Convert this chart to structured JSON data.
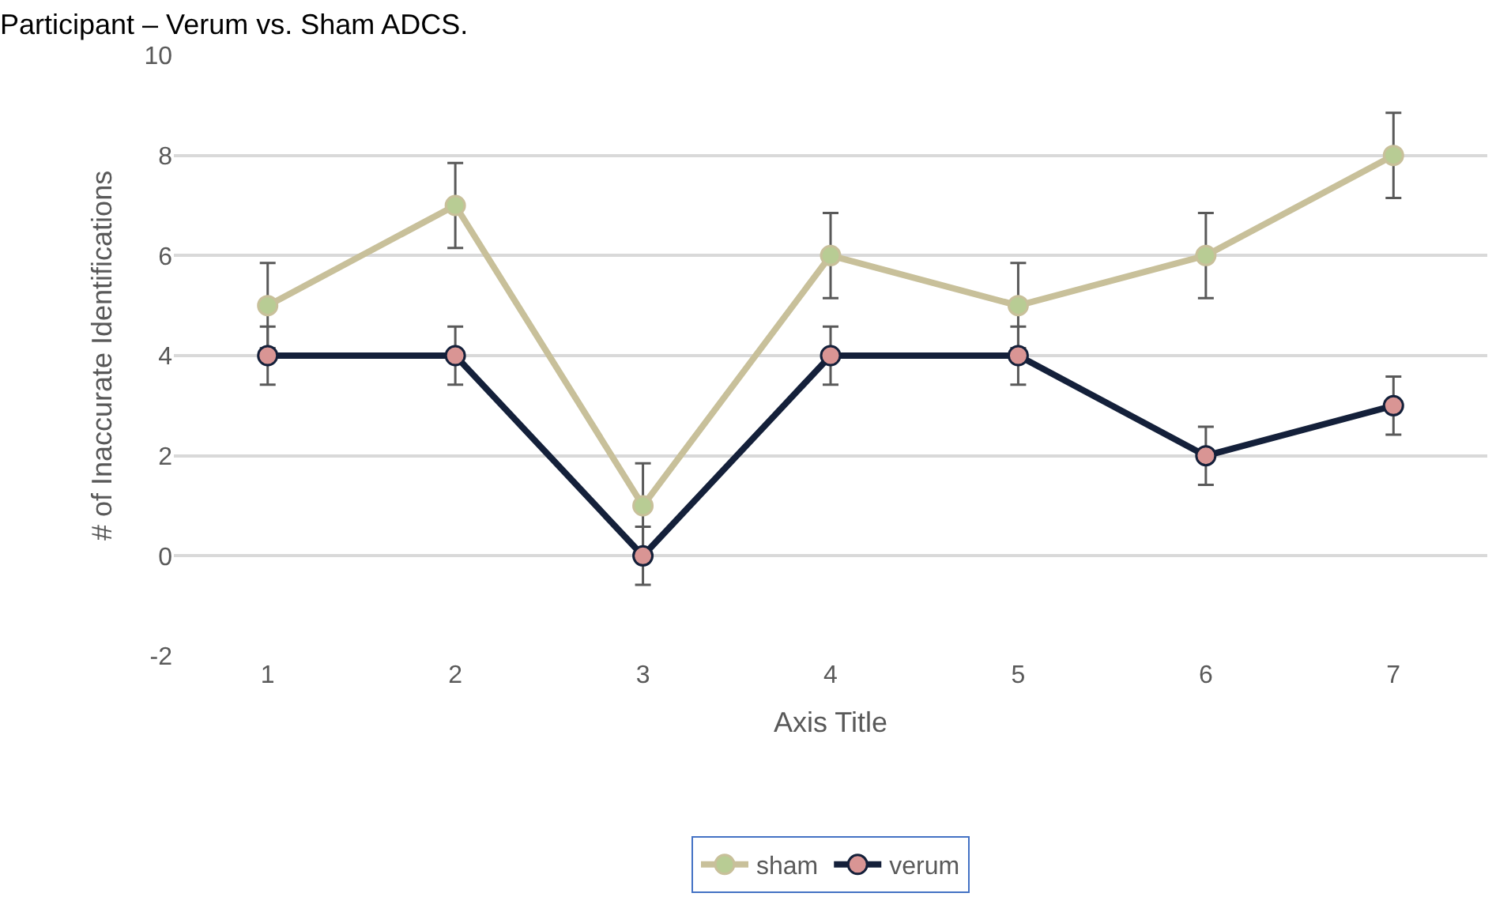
{
  "chart_data": {
    "type": "line",
    "title": "Participant – Verum vs. Sham ADCS.",
    "xlabel": "Axis Title",
    "ylabel": "# of Inaccurate Identifications",
    "categories": [
      "1",
      "2",
      "3",
      "4",
      "5",
      "6",
      "7"
    ],
    "series": [
      {
        "name": "sham",
        "color": "#c8c09a",
        "values": [
          5,
          7,
          1,
          6,
          5,
          6,
          8
        ],
        "errors": [
          0.85,
          0.85,
          0.85,
          0.85,
          0.85,
          0.85,
          0.85
        ]
      },
      {
        "name": "verum",
        "color": "#14203a",
        "values": [
          4,
          4,
          0,
          4,
          4,
          2,
          3
        ],
        "errors": [
          0.58,
          0.58,
          0.58,
          0.58,
          0.58,
          0.58,
          0.58
        ]
      }
    ],
    "ylim": [
      -2,
      10
    ],
    "yticks": [
      -2,
      0,
      2,
      4,
      6,
      8,
      10
    ],
    "grid": "y",
    "legend": "bottom",
    "marker": "circle",
    "line_style": "solid"
  }
}
